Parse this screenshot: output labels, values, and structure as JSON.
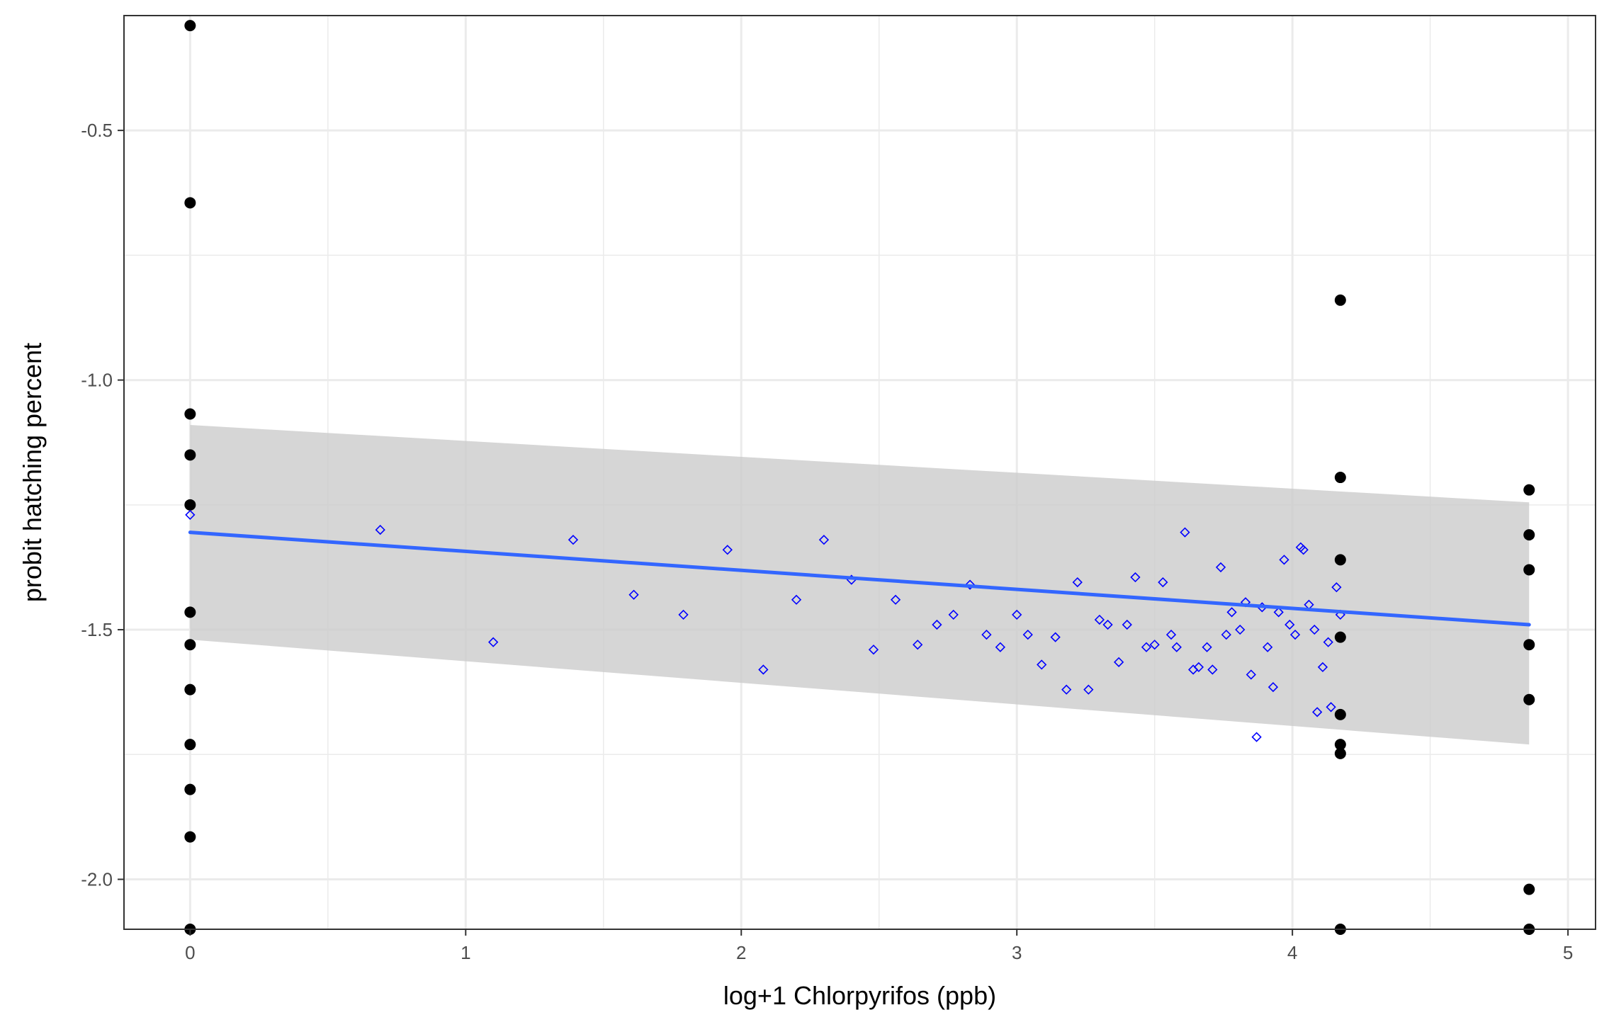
{
  "chart_data": {
    "type": "scatter",
    "title": "",
    "xlabel": "log+1 Chlorpyrifos (ppb)",
    "ylabel": "probit hatching percent",
    "xlim": [
      -0.24,
      5.1
    ],
    "ylim": [
      -2.1,
      -0.27
    ],
    "x_ticks": [
      0,
      1,
      2,
      3,
      4,
      5
    ],
    "x_tick_labels": [
      "0",
      "1",
      "2",
      "3",
      "4",
      "5"
    ],
    "y_ticks": [
      -2.0,
      -1.5,
      -1.0,
      -0.5
    ],
    "y_tick_labels": [
      "-2.0",
      "-1.5",
      "-1.0",
      "-0.5"
    ],
    "grid": true,
    "legend": "none",
    "colors": {
      "solid_points": "#000000",
      "open_points": "#0000ff",
      "fit_line": "#3366ff",
      "ribbon": "#cccccc",
      "grid": "#ebebeb",
      "panel_border": "#333333"
    },
    "series": [
      {
        "marker": "filled-circle",
        "points": [
          [
            0,
            -0.29
          ],
          [
            0,
            -0.645
          ],
          [
            0,
            -1.068
          ],
          [
            0,
            -1.15
          ],
          [
            0,
            -1.25
          ],
          [
            0,
            -1.465
          ],
          [
            0,
            -1.53
          ],
          [
            0,
            -1.62
          ],
          [
            0,
            -1.73
          ],
          [
            0,
            -1.82
          ],
          [
            0,
            -1.915
          ],
          [
            0,
            -2.1
          ],
          [
            4.174,
            -0.84
          ],
          [
            4.174,
            -1.195
          ],
          [
            4.174,
            -1.36
          ],
          [
            4.174,
            -1.515
          ],
          [
            4.174,
            -1.67
          ],
          [
            4.174,
            -1.73
          ],
          [
            4.174,
            -1.748
          ],
          [
            4.174,
            -2.1
          ],
          [
            4.859,
            -1.22
          ],
          [
            4.859,
            -1.31
          ],
          [
            4.859,
            -1.38
          ],
          [
            4.859,
            -1.53
          ],
          [
            4.859,
            -1.64
          ],
          [
            4.859,
            -2.02
          ],
          [
            4.859,
            -2.1
          ]
        ]
      },
      {
        "marker": "open-diamond",
        "points": [
          [
            0.0,
            -1.27
          ],
          [
            0.69,
            -1.3
          ],
          [
            1.1,
            -1.525
          ],
          [
            1.39,
            -1.32
          ],
          [
            1.61,
            -1.43
          ],
          [
            1.79,
            -1.47
          ],
          [
            1.95,
            -1.34
          ],
          [
            2.08,
            -1.58
          ],
          [
            2.2,
            -1.44
          ],
          [
            2.3,
            -1.32
          ],
          [
            2.4,
            -1.4
          ],
          [
            2.48,
            -1.54
          ],
          [
            2.56,
            -1.44
          ],
          [
            2.64,
            -1.53
          ],
          [
            2.71,
            -1.49
          ],
          [
            2.77,
            -1.47
          ],
          [
            2.83,
            -1.41
          ],
          [
            2.89,
            -1.51
          ],
          [
            2.94,
            -1.535
          ],
          [
            3.0,
            -1.47
          ],
          [
            3.04,
            -1.51
          ],
          [
            3.09,
            -1.57
          ],
          [
            3.14,
            -1.515
          ],
          [
            3.18,
            -1.62
          ],
          [
            3.22,
            -1.405
          ],
          [
            3.26,
            -1.62
          ],
          [
            3.3,
            -1.48
          ],
          [
            3.33,
            -1.49
          ],
          [
            3.37,
            -1.565
          ],
          [
            3.4,
            -1.49
          ],
          [
            3.43,
            -1.395
          ],
          [
            3.47,
            -1.535
          ],
          [
            3.5,
            -1.53
          ],
          [
            3.53,
            -1.405
          ],
          [
            3.56,
            -1.51
          ],
          [
            3.58,
            -1.535
          ],
          [
            3.61,
            -1.305
          ],
          [
            3.64,
            -1.58
          ],
          [
            3.66,
            -1.575
          ],
          [
            3.69,
            -1.535
          ],
          [
            3.71,
            -1.58
          ],
          [
            3.74,
            -1.375
          ],
          [
            3.76,
            -1.51
          ],
          [
            3.78,
            -1.465
          ],
          [
            3.81,
            -1.5
          ],
          [
            3.83,
            -1.445
          ],
          [
            3.85,
            -1.59
          ],
          [
            3.87,
            -1.715
          ],
          [
            3.89,
            -1.455
          ],
          [
            3.91,
            -1.535
          ],
          [
            3.93,
            -1.615
          ],
          [
            3.95,
            -1.465
          ],
          [
            3.97,
            -1.36
          ],
          [
            3.99,
            -1.49
          ],
          [
            4.01,
            -1.51
          ],
          [
            4.03,
            -1.335
          ],
          [
            4.04,
            -1.34
          ],
          [
            4.06,
            -1.45
          ],
          [
            4.08,
            -1.5
          ],
          [
            4.09,
            -1.665
          ],
          [
            4.11,
            -1.575
          ],
          [
            4.13,
            -1.525
          ],
          [
            4.14,
            -1.655
          ],
          [
            4.16,
            -1.415
          ],
          [
            4.174,
            -1.47
          ]
        ]
      }
    ],
    "fit": {
      "method": "linear",
      "x": [
        0,
        4.859
      ],
      "y": [
        -1.305,
        -1.49
      ],
      "ci_lower": [
        -1.52,
        -1.73
      ],
      "ci_upper": [
        -1.09,
        -1.245
      ]
    }
  }
}
